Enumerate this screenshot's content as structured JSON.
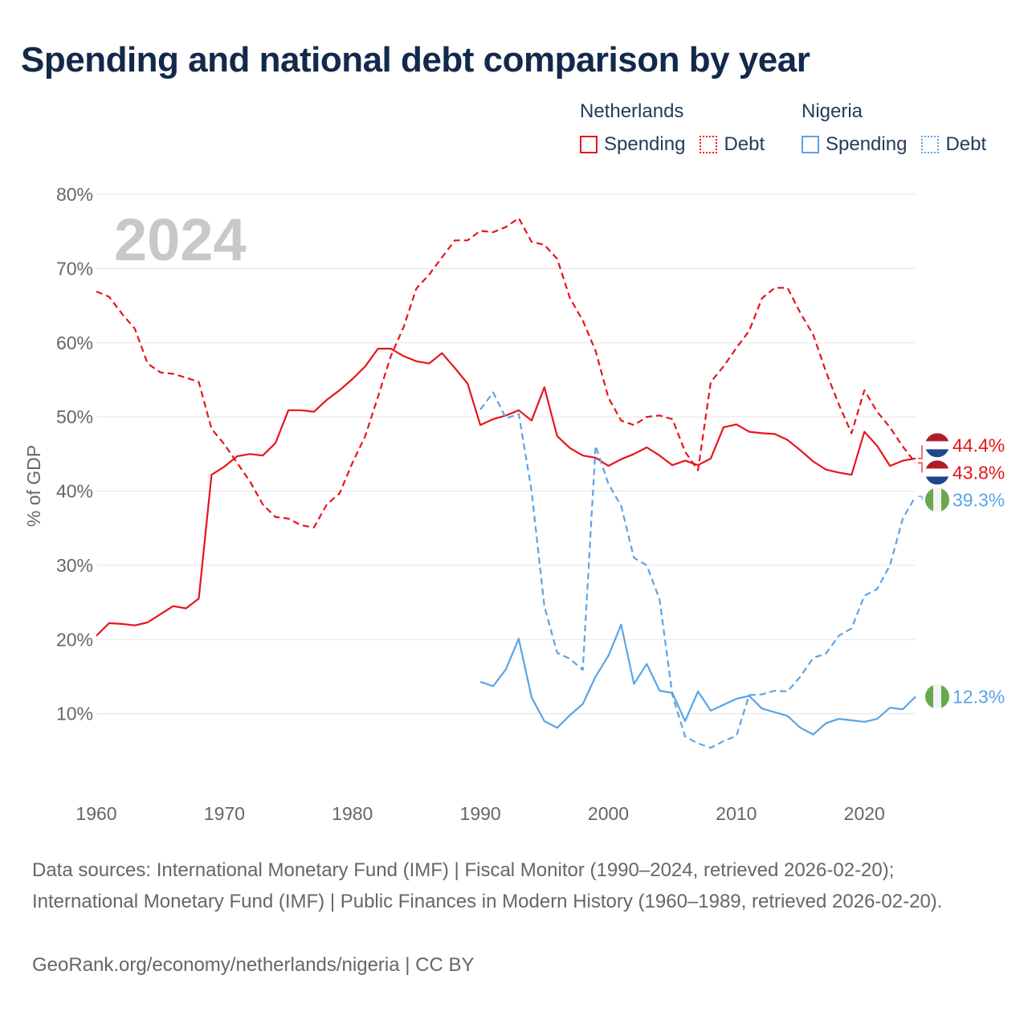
{
  "title": "Spending and national debt comparison by year",
  "legend": {
    "netherlands": {
      "name": "Netherlands",
      "spending_label": "Spending",
      "debt_label": "Debt",
      "color": "#e8141b"
    },
    "nigeria": {
      "name": "Nigeria",
      "spending_label": "Spending",
      "debt_label": "Debt",
      "color": "#5aa4e6"
    }
  },
  "chart_data": {
    "type": "line",
    "xlabel": "",
    "ylabel": "% of GDP",
    "year_watermark": "2024",
    "xlim": [
      1960,
      2025
    ],
    "ylim": [
      0,
      80
    ],
    "x_ticks": [
      1960,
      1970,
      1980,
      1990,
      2000,
      2010,
      2020
    ],
    "y_ticks": [
      10,
      20,
      30,
      40,
      50,
      60,
      70,
      80
    ],
    "y_tick_labels": [
      "10%",
      "20%",
      "30%",
      "40%",
      "50%",
      "60%",
      "70%",
      "80%"
    ],
    "grid": true,
    "series": [
      {
        "name": "Netherlands Spending",
        "country": "Netherlands",
        "style": "solid",
        "color": "#e8141b",
        "start_year": 1960,
        "values": [
          20.5,
          22.2,
          22.1,
          21.9,
          22.3,
          23.4,
          24.5,
          24.2,
          25.5,
          42.2,
          43.3,
          44.7,
          45.0,
          44.8,
          46.5,
          50.9,
          50.9,
          50.7,
          52.3,
          53.6,
          55.1,
          56.8,
          59.2,
          59.2,
          58.2,
          57.5,
          57.2,
          58.6,
          56.6,
          54.5,
          48.9,
          49.7,
          50.2,
          50.9,
          49.5,
          54.0,
          47.4,
          45.8,
          44.8,
          44.5,
          43.4,
          44.3,
          45.0,
          45.9,
          44.8,
          43.5,
          44.1,
          43.5,
          44.4,
          48.6,
          49.0,
          48.0,
          47.8,
          47.7,
          46.9,
          45.5,
          44.0,
          42.9,
          42.5,
          42.2,
          48.0,
          46.1,
          43.4,
          44.1,
          44.4
        ],
        "end_label": "44.4%"
      },
      {
        "name": "Netherlands Debt",
        "country": "Netherlands",
        "style": "dashed",
        "color": "#e8141b",
        "start_year": 1960,
        "values": [
          66.9,
          66.2,
          63.9,
          61.9,
          57.2,
          56.0,
          55.8,
          55.3,
          54.7,
          48.4,
          46.3,
          43.8,
          41.3,
          38.2,
          36.5,
          36.3,
          35.4,
          35.1,
          38.2,
          39.7,
          43.8,
          47.4,
          52.7,
          58.2,
          62.1,
          67.3,
          69.2,
          71.5,
          73.8,
          73.8,
          75.1,
          74.9,
          75.6,
          76.8,
          73.6,
          73.2,
          71.3,
          66.0,
          63.0,
          58.9,
          52.6,
          49.5,
          48.9,
          50.0,
          50.2,
          49.7,
          45.3,
          42.8,
          54.7,
          56.8,
          59.3,
          61.6,
          66.0,
          67.4,
          67.4,
          64.0,
          61.1,
          56.1,
          51.7,
          47.8,
          53.6,
          50.7,
          48.6,
          46.0,
          43.8
        ],
        "end_label": "43.8%"
      },
      {
        "name": "Nigeria Spending",
        "country": "Nigeria",
        "style": "solid",
        "color": "#5aa4e6",
        "start_year": 1990,
        "values": [
          14.3,
          13.7,
          16.0,
          20.1,
          12.2,
          9.0,
          8.1,
          9.8,
          11.3,
          15.0,
          17.8,
          22.0,
          14.0,
          16.7,
          13.1,
          12.8,
          9.0,
          13.0,
          10.4,
          11.2,
          12.0,
          12.4,
          10.7,
          10.2,
          9.7,
          8.1,
          7.2,
          8.7,
          9.3,
          9.1,
          8.9,
          9.3,
          10.8,
          10.6,
          12.3
        ],
        "end_label": "12.3%"
      },
      {
        "name": "Nigeria Debt",
        "country": "Nigeria",
        "style": "dashed",
        "color": "#5aa4e6",
        "start_year": 1990,
        "values": [
          51.0,
          53.3,
          49.8,
          50.4,
          40.0,
          24.5,
          18.2,
          17.4,
          15.9,
          46.1,
          41.0,
          38.0,
          31.0,
          30.0,
          25.4,
          12.5,
          6.9,
          6.0,
          5.4,
          6.3,
          7.0,
          12.5,
          12.6,
          13.1,
          13.0,
          15.0,
          17.5,
          18.1,
          20.5,
          21.5,
          25.9,
          26.8,
          30.0,
          36.3,
          39.3
        ],
        "end_label": "39.3%"
      }
    ]
  },
  "sources": {
    "text": "Data sources: International Monetary Fund (IMF) | Fiscal Monitor (1990–2024, retrieved 2026-02-20); International Monetary Fund (IMF) | Public Finances in Modern History (1960–1989, retrieved 2026-02-20).",
    "credit": "GeoRank.org/economy/netherlands/nigeria | CC BY"
  }
}
